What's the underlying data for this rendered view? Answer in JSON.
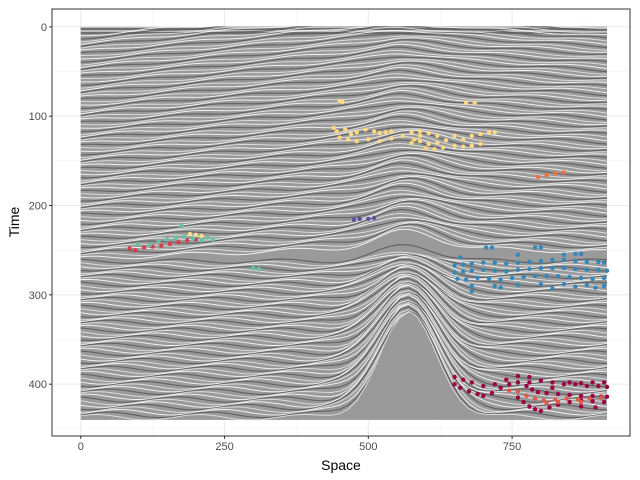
{
  "chart_data": {
    "type": "scatter",
    "title": "",
    "xlabel": "Space",
    "ylabel": "Time",
    "xlim": [
      -50,
      955
    ],
    "ylim": [
      458,
      -20
    ],
    "y_reversed": true,
    "x_ticks": [
      0,
      250,
      500,
      750
    ],
    "y_ticks": [
      0,
      100,
      200,
      300,
      400
    ],
    "grid": true,
    "legend": "none",
    "background": "seismic amplitude section (grayscale), Space 0-915, Time 0-440",
    "series": [
      {
        "color": "#FDD982",
        "points": [
          [
            450,
            83
          ],
          [
            455,
            84
          ],
          [
            440,
            113
          ],
          [
            445,
            117
          ],
          [
            460,
            115
          ],
          [
            470,
            120
          ],
          [
            480,
            118
          ],
          [
            495,
            115
          ],
          [
            510,
            117
          ],
          [
            520,
            119
          ],
          [
            530,
            118
          ],
          [
            540,
            117
          ],
          [
            450,
            124
          ],
          [
            465,
            126
          ],
          [
            480,
            128
          ],
          [
            500,
            126
          ],
          [
            520,
            128
          ],
          [
            540,
            125
          ],
          [
            560,
            122
          ],
          [
            575,
            118
          ],
          [
            590,
            117
          ],
          [
            605,
            119
          ],
          [
            620,
            122
          ],
          [
            575,
            130
          ],
          [
            590,
            128
          ],
          [
            605,
            131
          ],
          [
            620,
            130
          ],
          [
            635,
            127
          ],
          [
            650,
            122
          ],
          [
            665,
            126
          ],
          [
            680,
            122
          ],
          [
            695,
            120
          ],
          [
            710,
            118
          ],
          [
            720,
            118
          ],
          [
            600,
            136
          ],
          [
            615,
            137
          ],
          [
            630,
            135
          ],
          [
            650,
            133
          ],
          [
            665,
            134
          ],
          [
            680,
            133
          ],
          [
            695,
            131
          ],
          [
            590,
            122
          ],
          [
            580,
            126
          ],
          [
            670,
            85
          ],
          [
            685,
            85
          ]
        ]
      },
      {
        "color": "#F46D43",
        "points": [
          [
            795,
            168
          ],
          [
            810,
            166
          ],
          [
            825,
            164
          ],
          [
            840,
            163
          ]
        ]
      },
      {
        "color": "#5E4FA2",
        "points": [
          [
            475,
            216
          ],
          [
            485,
            215
          ],
          [
            500,
            215
          ],
          [
            510,
            214
          ]
        ]
      },
      {
        "color": "#D53E4F",
        "points": [
          [
            85,
            248
          ],
          [
            95,
            250
          ],
          [
            110,
            247
          ],
          [
            125,
            246
          ],
          [
            140,
            245
          ],
          [
            155,
            243
          ],
          [
            170,
            241
          ],
          [
            185,
            239
          ],
          [
            200,
            238
          ]
        ]
      },
      {
        "color": "#66C2A5",
        "points": [
          [
            100,
            243
          ],
          [
            120,
            244
          ],
          [
            135,
            240
          ],
          [
            150,
            238
          ],
          [
            165,
            236
          ],
          [
            180,
            235
          ],
          [
            195,
            237
          ],
          [
            210,
            239
          ],
          [
            220,
            236
          ],
          [
            230,
            238
          ],
          [
            300,
            270
          ],
          [
            310,
            271
          ],
          [
            175,
            223
          ]
        ]
      },
      {
        "color": "#FEE08B",
        "points": [
          [
            190,
            232
          ],
          [
            200,
            233
          ],
          [
            210,
            234
          ]
        ]
      },
      {
        "color": "#3288BD",
        "points": [
          [
            705,
            247
          ],
          [
            715,
            247
          ],
          [
            790,
            247
          ],
          [
            800,
            247
          ],
          [
            840,
            255
          ],
          [
            860,
            254
          ],
          [
            870,
            254
          ],
          [
            650,
            267
          ],
          [
            665,
            266
          ],
          [
            680,
            265
          ],
          [
            700,
            264
          ],
          [
            720,
            264
          ],
          [
            740,
            265
          ],
          [
            760,
            264
          ],
          [
            780,
            263
          ],
          [
            800,
            262
          ],
          [
            820,
            261
          ],
          [
            840,
            261
          ],
          [
            860,
            262
          ],
          [
            880,
            263
          ],
          [
            900,
            263
          ],
          [
            910,
            264
          ],
          [
            650,
            275
          ],
          [
            665,
            274
          ],
          [
            680,
            273
          ],
          [
            700,
            272
          ],
          [
            720,
            273
          ],
          [
            740,
            274
          ],
          [
            760,
            272
          ],
          [
            780,
            271
          ],
          [
            800,
            270
          ],
          [
            820,
            270
          ],
          [
            840,
            270
          ],
          [
            860,
            271
          ],
          [
            880,
            272
          ],
          [
            900,
            272
          ],
          [
            915,
            273
          ],
          [
            655,
            282
          ],
          [
            670,
            283
          ],
          [
            690,
            281
          ],
          [
            710,
            282
          ],
          [
            730,
            283
          ],
          [
            750,
            281
          ],
          [
            770,
            280
          ],
          [
            790,
            279
          ],
          [
            810,
            279
          ],
          [
            830,
            279
          ],
          [
            850,
            280
          ],
          [
            870,
            281
          ],
          [
            890,
            282
          ],
          [
            910,
            281
          ],
          [
            680,
            290
          ],
          [
            720,
            290
          ],
          [
            760,
            289
          ],
          [
            800,
            288
          ],
          [
            840,
            288
          ],
          [
            880,
            289
          ],
          [
            910,
            290
          ],
          [
            660,
            258
          ],
          [
            760,
            255
          ],
          [
            680,
            296
          ],
          [
            730,
            292
          ],
          [
            820,
            293
          ],
          [
            860,
            291
          ],
          [
            895,
            292
          ]
        ]
      },
      {
        "color": "#9E0142",
        "points": [
          [
            650,
            400
          ],
          [
            660,
            404
          ],
          [
            675,
            408
          ],
          [
            690,
            411
          ],
          [
            700,
            413
          ],
          [
            715,
            410
          ],
          [
            730,
            404
          ],
          [
            745,
            400
          ],
          [
            760,
            398
          ],
          [
            775,
            402
          ],
          [
            785,
            406
          ],
          [
            795,
            409
          ],
          [
            810,
            410
          ],
          [
            830,
            411
          ],
          [
            850,
            412
          ],
          [
            870,
            413
          ],
          [
            890,
            413
          ],
          [
            905,
            414
          ],
          [
            915,
            414
          ],
          [
            650,
            392
          ],
          [
            665,
            395
          ],
          [
            680,
            398
          ],
          [
            700,
            402
          ],
          [
            720,
            400
          ],
          [
            740,
            395
          ],
          [
            760,
            391
          ],
          [
            780,
            392
          ],
          [
            800,
            396
          ],
          [
            820,
            398
          ],
          [
            840,
            400
          ],
          [
            860,
            400
          ],
          [
            880,
            402
          ],
          [
            900,
            402
          ],
          [
            915,
            403
          ],
          [
            760,
            415
          ],
          [
            770,
            420
          ],
          [
            780,
            425
          ],
          [
            790,
            428
          ],
          [
            800,
            430
          ],
          [
            815,
            426
          ],
          [
            830,
            423
          ],
          [
            850,
            420
          ],
          [
            870,
            418
          ],
          [
            890,
            419
          ],
          [
            910,
            420
          ],
          [
            850,
            398
          ],
          [
            870,
            399
          ],
          [
            890,
            398
          ],
          [
            910,
            398
          ],
          [
            780,
            398
          ],
          [
            820,
            404
          ],
          [
            870,
            425
          ],
          [
            895,
            426
          ]
        ]
      },
      {
        "color": "#E05A48",
        "points": [
          [
            745,
            407
          ],
          [
            760,
            408
          ],
          [
            775,
            413
          ],
          [
            790,
            416
          ],
          [
            805,
            418
          ],
          [
            825,
            417
          ],
          [
            845,
            416
          ],
          [
            865,
            417
          ],
          [
            885,
            416
          ],
          [
            905,
            415
          ],
          [
            810,
            421
          ],
          [
            830,
            420
          ],
          [
            870,
            420
          ]
        ]
      }
    ]
  }
}
